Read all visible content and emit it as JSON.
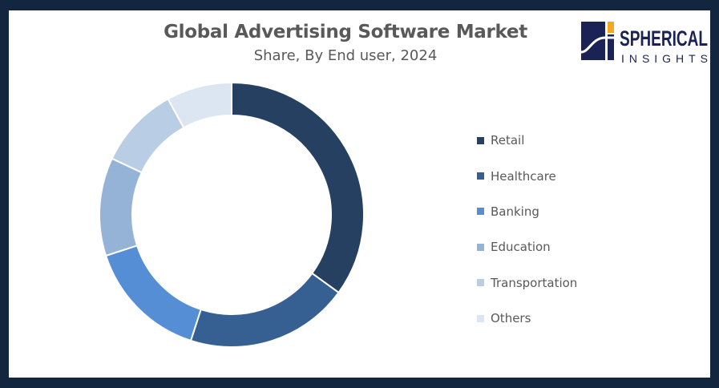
{
  "chart_data": {
    "type": "pie",
    "variant": "donut",
    "title": "Global Advertising Software Market",
    "subtitle": "Share, By End user, 2024",
    "categories": [
      "Retail",
      "Healthcare",
      "Banking",
      "Education",
      "Transportation",
      "Others"
    ],
    "values": [
      35,
      20,
      15,
      12,
      10,
      8
    ],
    "unit": "%",
    "colors": [
      "#264061",
      "#366092",
      "#558ED5",
      "#95B3D7",
      "#B9CDE5",
      "#DCE6F2"
    ],
    "legend_position": "right",
    "start_angle": "top, clockwise"
  },
  "logo": {
    "line1": "SPHERICAL",
    "line2": "INSIGHTS",
    "navy": "#1b2256",
    "orange": "#f5a623"
  },
  "frame_color": "#13263f"
}
